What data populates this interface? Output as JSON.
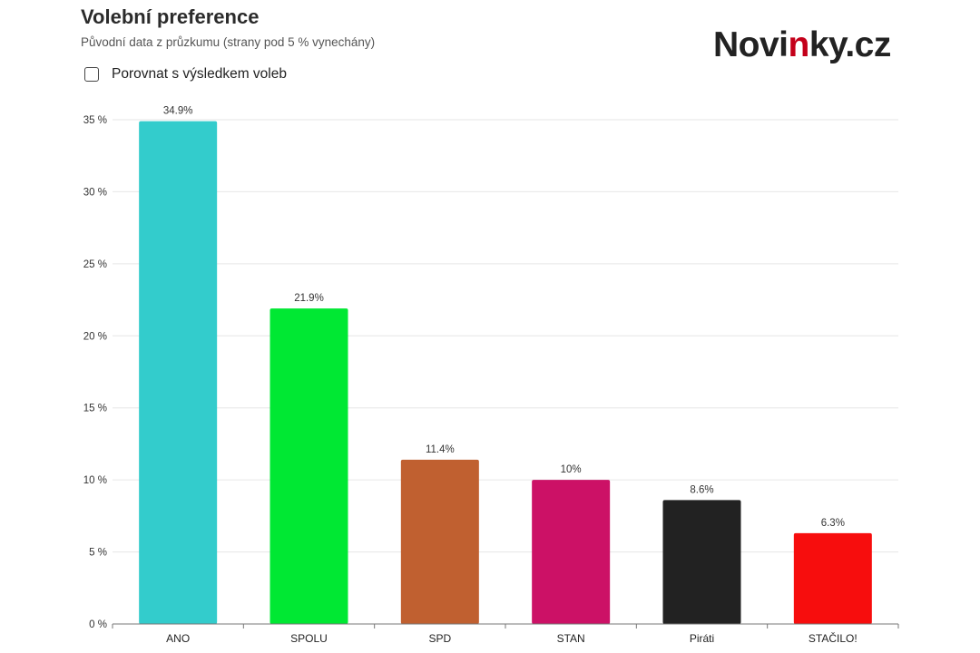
{
  "header": {
    "title": "Volební preference",
    "subtitle": "Původní data z průzkumu (strany pod 5 % vynechány)",
    "compare_label": "Porovnat s výsledkem voleb"
  },
  "logo": {
    "part1": "Novi",
    "part2": "n",
    "part3": "ky.cz"
  },
  "chart_data": {
    "type": "bar",
    "categories": [
      "ANO",
      "SPOLU",
      "SPD",
      "STAN",
      "Piráti",
      "STAČILO!"
    ],
    "values": [
      34.9,
      21.9,
      11.4,
      10,
      8.6,
      6.3
    ],
    "value_labels": [
      "34.9%",
      "21.9%",
      "11.4%",
      "10%",
      "8.6%",
      "6.3%"
    ],
    "colors": [
      "#33cccc",
      "#00e833",
      "#c06030",
      "#cc1166",
      "#222222",
      "#f70d0d"
    ],
    "ylim": [
      0,
      35
    ],
    "yticks": [
      0,
      5,
      10,
      15,
      20,
      25,
      30,
      35
    ],
    "ytick_labels": [
      "0 %",
      "5 %",
      "10 %",
      "15 %",
      "20 %",
      "25 %",
      "30 %",
      "35 %"
    ],
    "grid": true,
    "title": "Volební preference"
  }
}
